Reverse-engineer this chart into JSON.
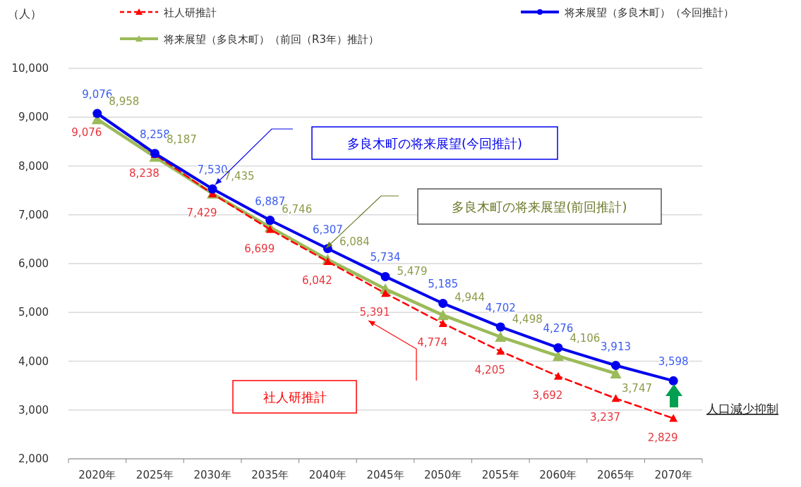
{
  "chart_data": {
    "type": "line",
    "ylabel": "（人）",
    "categories": [
      "2020年",
      "2025年",
      "2030年",
      "2035年",
      "2040年",
      "2045年",
      "2050年",
      "2055年",
      "2060年",
      "2065年",
      "2070年"
    ],
    "series": [
      {
        "name": "社人研推計",
        "color": "#ff0000",
        "marker": "triangle",
        "line_style": "dashed",
        "values": [
          9076,
          8238,
          7429,
          6699,
          6042,
          5391,
          4774,
          4205,
          3692,
          3237,
          2829
        ],
        "value_labels": [
          "9,076",
          "8,238",
          "7,429",
          "6,699",
          "6,042",
          "5,391",
          "4,774",
          "4,205",
          "3,692",
          "3,237",
          "2,829"
        ]
      },
      {
        "name": "将来展望（多良木町）（今回推計）",
        "color": "#0000ee",
        "marker": "circle",
        "line_style": "solid",
        "values": [
          9076,
          8258,
          7530,
          6887,
          6307,
          5734,
          5185,
          4702,
          4276,
          3913,
          3598
        ],
        "value_labels": [
          "9,076",
          "8,258",
          "7,530",
          "6,887",
          "6,307",
          "5,734",
          "5,185",
          "4,702",
          "4,276",
          "3,913",
          "3,598"
        ]
      },
      {
        "name": "将来展望（多良木町）（前回（R3年）推計）",
        "color": "#9bbb59",
        "marker": "triangle",
        "line_style": "solid",
        "values": [
          8958,
          8187,
          7435,
          6746,
          6084,
          5479,
          4944,
          4498,
          4106,
          3747,
          null
        ],
        "value_labels": [
          "8,958",
          "8,187",
          "7,435",
          "6,746",
          "6,084",
          "5,479",
          "4,944",
          "4,498",
          "4,106",
          "3,747",
          null
        ]
      }
    ],
    "ylim": [
      2000,
      10000
    ],
    "yticks": [
      {
        "value": 2000,
        "label": "2,000"
      },
      {
        "value": 3000,
        "label": "3,000"
      },
      {
        "value": 4000,
        "label": "4,000"
      },
      {
        "value": 5000,
        "label": "5,000"
      },
      {
        "value": 6000,
        "label": "6,000"
      },
      {
        "value": 7000,
        "label": "7,000"
      },
      {
        "value": 8000,
        "label": "8,000"
      },
      {
        "value": 9000,
        "label": "9,000"
      },
      {
        "value": 10000,
        "label": "10,000"
      }
    ],
    "grid": "y",
    "legend": "top",
    "annotations": [
      "社人研推計",
      "多良木町の将来展望(今回推計)",
      "多良木町の将来展望(前回推計)",
      "人口減少抑制"
    ]
  }
}
